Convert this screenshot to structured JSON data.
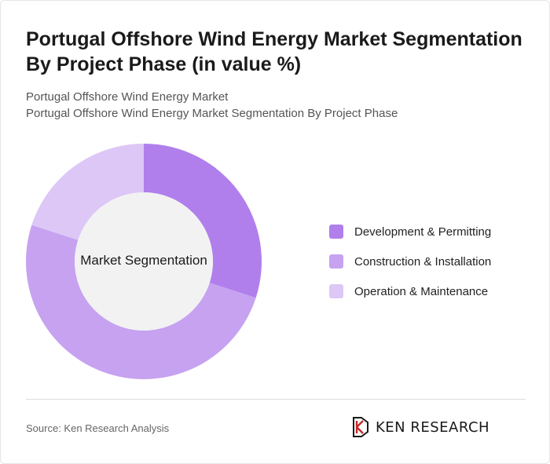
{
  "title": "Portugal Offshore Wind Energy Market Segmentation By Project Phase (in value %)",
  "subtitle_1": "Portugal Offshore Wind Energy Market",
  "subtitle_2": "Portugal Offshore Wind Energy Market Segmentation By Project Phase",
  "center_label": "Market Segmentation",
  "source": "Source: Ken Research Analysis",
  "brand": "KEN RESEARCH",
  "chart_data": {
    "type": "pie",
    "donut": true,
    "legend_position": "right",
    "series": [
      {
        "name": "Development & Permitting",
        "value": 30,
        "color": "#b07fec"
      },
      {
        "name": "Construction & Installation",
        "value": 50,
        "color": "#c6a2f0"
      },
      {
        "name": "Operation & Maintenance",
        "value": 20,
        "color": "#dcc7f6"
      }
    ]
  },
  "colors": {
    "center_fill": "#f2f2f2",
    "title": "#1a1a1a",
    "subtitle": "#555555"
  }
}
